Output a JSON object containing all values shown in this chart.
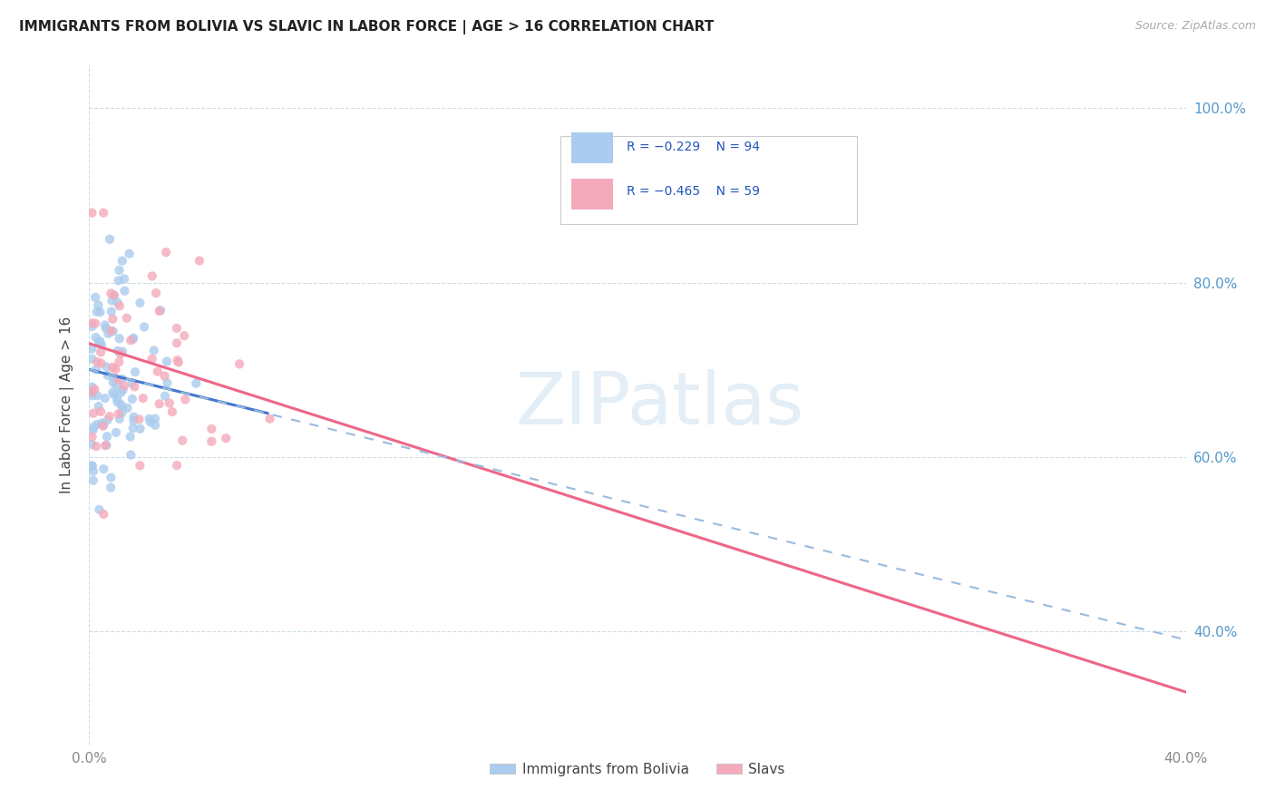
{
  "title": "IMMIGRANTS FROM BOLIVIA VS SLAVIC IN LABOR FORCE | AGE > 16 CORRELATION CHART",
  "source": "Source: ZipAtlas.com",
  "ylabel": "In Labor Force | Age > 16",
  "color_bolivia": "#aaccee",
  "color_slavs": "#f4aabb",
  "color_line_bolivia": "#4477cc",
  "color_line_slavs": "#ee6688",
  "color_line_dashed": "#99bbdd",
  "xlim": [
    0.0,
    0.4
  ],
  "ylim": [
    0.27,
    1.05
  ],
  "legend_label1": "Immigrants from Bolivia",
  "legend_label2": "Slavs",
  "bolivia_line_x0": 0.0,
  "bolivia_line_x1": 0.065,
  "bolivia_line_y0": 0.7,
  "bolivia_line_y1": 0.65,
  "slavs_line_x0": 0.0,
  "slavs_line_x1": 0.4,
  "slavs_line_y0": 0.73,
  "slavs_line_y1": 0.33,
  "dashed_line_x0": 0.0,
  "dashed_line_x1": 0.4,
  "dashed_line_y0": 0.7,
  "dashed_line_y1": 0.39,
  "ytick_vals": [
    0.4,
    0.6,
    0.8,
    1.0
  ],
  "ytick_labels": [
    "40.0%",
    "60.0%",
    "80.0%",
    "100.0%"
  ],
  "xtick_vals": [
    0.0,
    0.4
  ],
  "xtick_labels": [
    "0.0%",
    "40.0%"
  ]
}
